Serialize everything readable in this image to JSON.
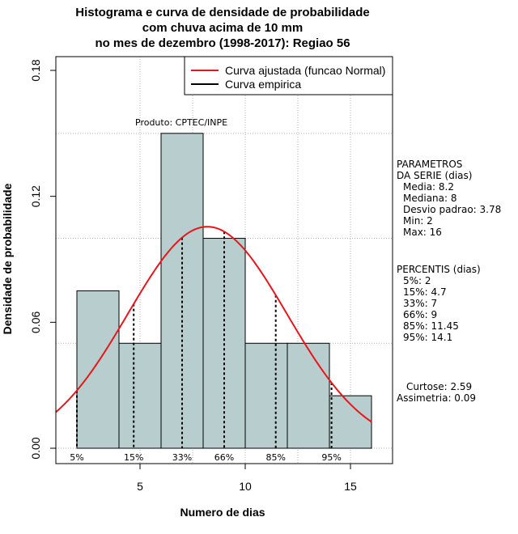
{
  "colors": {
    "bar_fill": "#b8cece",
    "bar_stroke": "#000000",
    "fitted_curve": "#e8161c",
    "empirical_curve": "#000000",
    "grid": "#b0b0b0"
  },
  "chart_data": {
    "type": "bar",
    "title_lines": [
      "Histograma e curva de densidade de probabilidade",
      "com chuva acima de 10 mm",
      "no mes de dezembro (1998-2017): Regiao 56"
    ],
    "xlabel": "Numero de dias",
    "ylabel": "Densidade de probabilidade",
    "xlim": [
      1,
      17
    ],
    "ylim": [
      0,
      0.18
    ],
    "x_ticks": [
      5,
      10,
      15
    ],
    "y_ticks": [
      0.0,
      0.06,
      0.12,
      0.18
    ],
    "y_tick_labels": [
      "0.00",
      "0.06",
      "0.12",
      "0.18"
    ],
    "grid": true,
    "bins": [
      {
        "from": 2,
        "to": 4,
        "density": 0.075
      },
      {
        "from": 4,
        "to": 6,
        "density": 0.05
      },
      {
        "from": 6,
        "to": 8,
        "density": 0.15
      },
      {
        "from": 8,
        "to": 10,
        "density": 0.1
      },
      {
        "from": 10,
        "to": 12,
        "density": 0.05
      },
      {
        "from": 12,
        "to": 14,
        "density": 0.05
      },
      {
        "from": 14,
        "to": 16,
        "density": 0.025
      }
    ],
    "normal_fit": {
      "mean": 8.2,
      "sd": 3.78
    },
    "legend": {
      "position": "top-right",
      "entries": [
        {
          "label": "Curva ajustada (funcao Normal)",
          "color": "#e8161c"
        },
        {
          "label": "Curva empirica",
          "color": "#000000"
        }
      ]
    },
    "source_note": "Produto: CPTEC/INPE",
    "percentile_markers": [
      {
        "label": "5%",
        "x": 2
      },
      {
        "label": "15%",
        "x": 4.7
      },
      {
        "label": "33%",
        "x": 7
      },
      {
        "label": "66%",
        "x": 9
      },
      {
        "label": "85%",
        "x": 11.45
      },
      {
        "label": "95%",
        "x": 14.1
      }
    ],
    "parameters": {
      "heading_lines": [
        "PARAMETROS",
        "DA SERIE (dias)"
      ],
      "items": [
        "Media: 8.2",
        "Mediana: 8",
        "Desvio padrao: 3.78",
        "Min: 2",
        "Max: 16"
      ]
    },
    "percentiles": {
      "heading": "PERCENTIS (dias)",
      "items": [
        "5%: 2",
        "15%: 4.7",
        "33%: 7",
        "66%: 9",
        "85%: 11.45",
        "95%: 14.1"
      ]
    },
    "shape_stats": [
      "Curtose: 2.59",
      "Assimetria: 0.09"
    ]
  }
}
